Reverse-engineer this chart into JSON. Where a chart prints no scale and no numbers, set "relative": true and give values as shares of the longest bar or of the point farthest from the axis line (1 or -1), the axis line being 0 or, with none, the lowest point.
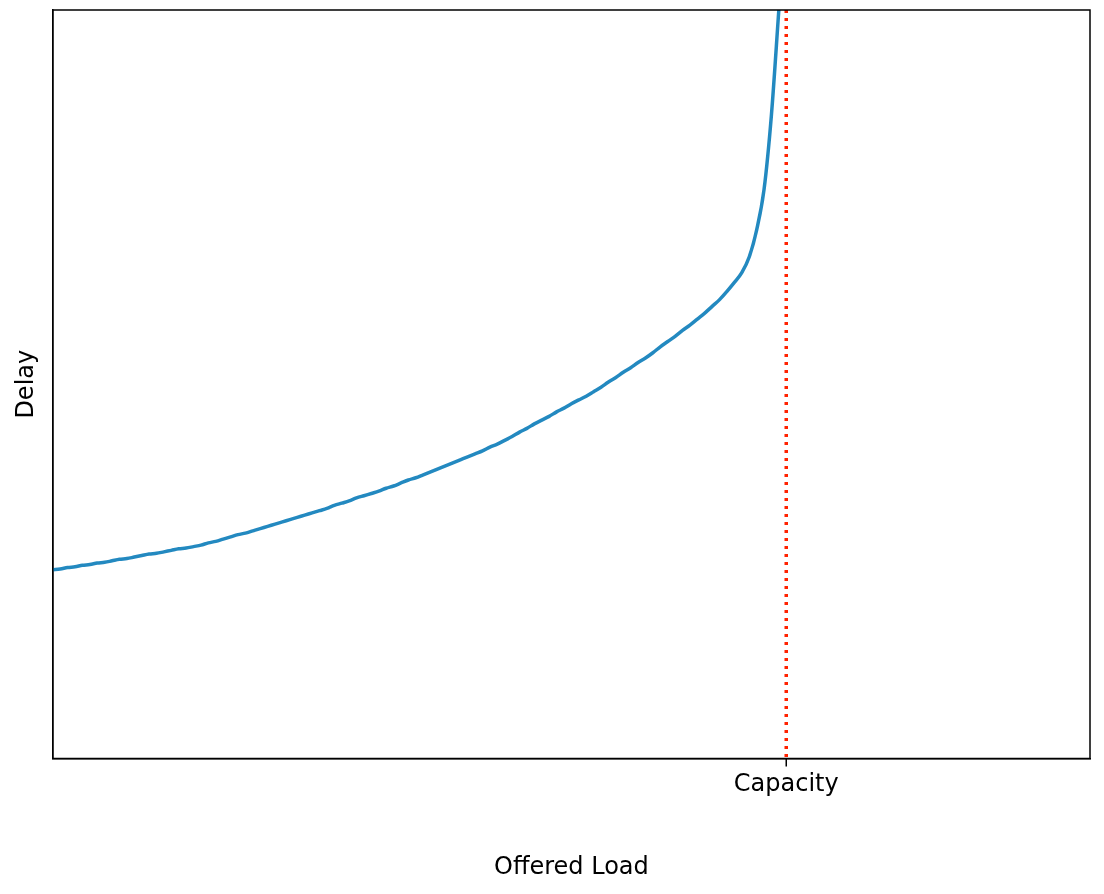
{
  "chart_data": {
    "type": "line",
    "xlabel": "Offered Load",
    "ylabel": "Delay",
    "relative": true,
    "categories": [
      null,
      null,
      null,
      null,
      null,
      null,
      null,
      null,
      null,
      null,
      null,
      null,
      null,
      null,
      null,
      null,
      null,
      null,
      null,
      null,
      null,
      null,
      null,
      null,
      null,
      null,
      null,
      null,
      null,
      null,
      null,
      null,
      null,
      null,
      null,
      null,
      null,
      null,
      null,
      null,
      null,
      null,
      null,
      null,
      null,
      null,
      null,
      null,
      null,
      null,
      null,
      null,
      null,
      null,
      null,
      null,
      null,
      null,
      null,
      null,
      null,
      null,
      null,
      null,
      null,
      null,
      null,
      null,
      null,
      null,
      null,
      null,
      null,
      null,
      null,
      null,
      null,
      null,
      null,
      null,
      null,
      null,
      null,
      null,
      null,
      null,
      null,
      null,
      null,
      null,
      null,
      null,
      null,
      null,
      null,
      null,
      null,
      null,
      null,
      null,
      null,
      null,
      null,
      null,
      null,
      null,
      null,
      null,
      null,
      null,
      null,
      null,
      null,
      null,
      null,
      null,
      null,
      null,
      null,
      null,
      null,
      null,
      null,
      null,
      null,
      null,
      null,
      null,
      null,
      null,
      null,
      null,
      null,
      null,
      null,
      null,
      null,
      null,
      null,
      null,
      null
    ],
    "series": [
      {
        "color": "#2389c0",
        "values": [
          0.252,
          0.253,
          0.255,
          0.256,
          0.258,
          0.259,
          0.261,
          0.262,
          0.264,
          0.266,
          0.267,
          0.269,
          0.271,
          0.273,
          0.274,
          0.276,
          0.278,
          0.28,
          0.281,
          0.283,
          0.285,
          0.288,
          0.29,
          0.293,
          0.296,
          0.299,
          0.301,
          0.304,
          0.307,
          0.31,
          0.313,
          0.316,
          0.319,
          0.322,
          0.325,
          0.328,
          0.331,
          0.334,
          0.338,
          0.341,
          0.344,
          0.348,
          0.351,
          0.354,
          0.357,
          0.361,
          0.364,
          0.368,
          0.372,
          0.375,
          0.379,
          0.383,
          0.387,
          0.391,
          0.395,
          0.399,
          0.403,
          0.407,
          0.411,
          0.416,
          0.42,
          0.425,
          0.43,
          0.436,
          0.441,
          0.447,
          0.452,
          0.457,
          0.463,
          0.468,
          0.474,
          0.479,
          0.484,
          0.49,
          0.496,
          0.503,
          0.509,
          0.516,
          0.522,
          0.529,
          0.535,
          0.542,
          0.55,
          0.557,
          0.564,
          0.572,
          0.579,
          0.587,
          0.595,
          0.604,
          0.613,
          0.624,
          0.636,
          0.649,
          0.67,
          0.706,
          0.76,
          0.86,
          1.0,
          null,
          null,
          null,
          null,
          null,
          null,
          null,
          null,
          null,
          null,
          null,
          null,
          null,
          null,
          null,
          null,
          null,
          null,
          null,
          null,
          null,
          null,
          null,
          null,
          null,
          null,
          null,
          null,
          null,
          null,
          null,
          null,
          null,
          null,
          null,
          null,
          null,
          null,
          null,
          null,
          null,
          null
        ]
      }
    ],
    "annotations": [
      "Capacity"
    ],
    "legend": false
  }
}
